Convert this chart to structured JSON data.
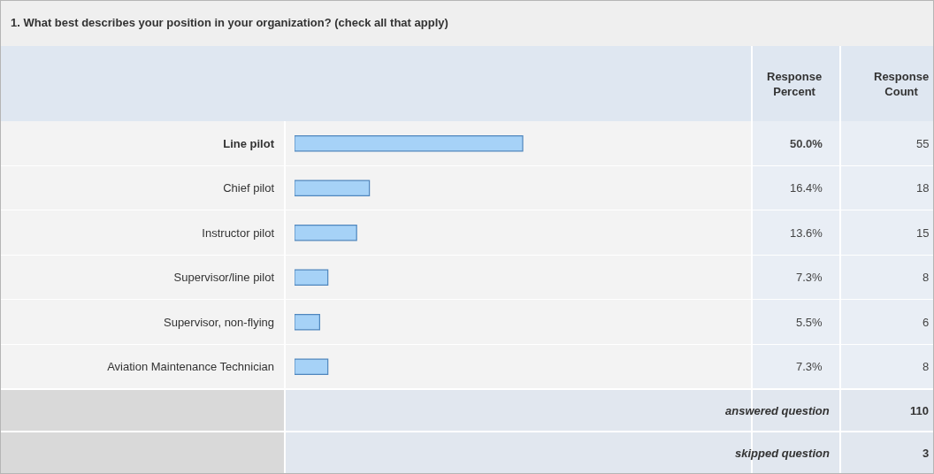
{
  "chart_data": {
    "type": "bar",
    "orientation": "horizontal",
    "title": "1. What best describes your position in your organization? (check all that apply)",
    "categories": [
      "Line pilot",
      "Chief pilot",
      "Instructor pilot",
      "Supervisor/line pilot",
      "Supervisor, non-flying",
      "Aviation Maintenance Technician"
    ],
    "values": [
      50.0,
      16.4,
      13.6,
      7.3,
      5.5,
      7.3
    ],
    "value_labels": [
      "50.0%",
      "16.4%",
      "13.6%",
      "7.3%",
      "5.5%",
      "7.3%"
    ],
    "color": "#a6d2f7",
    "xlim": [
      0,
      100
    ],
    "tick_labels": "y",
    "annotations": [
      "Response Percent",
      "Response Count",
      "55",
      "18",
      "15",
      "8",
      "6",
      "8",
      "answered question",
      "110",
      "skipped question",
      "3"
    ]
  }
}
